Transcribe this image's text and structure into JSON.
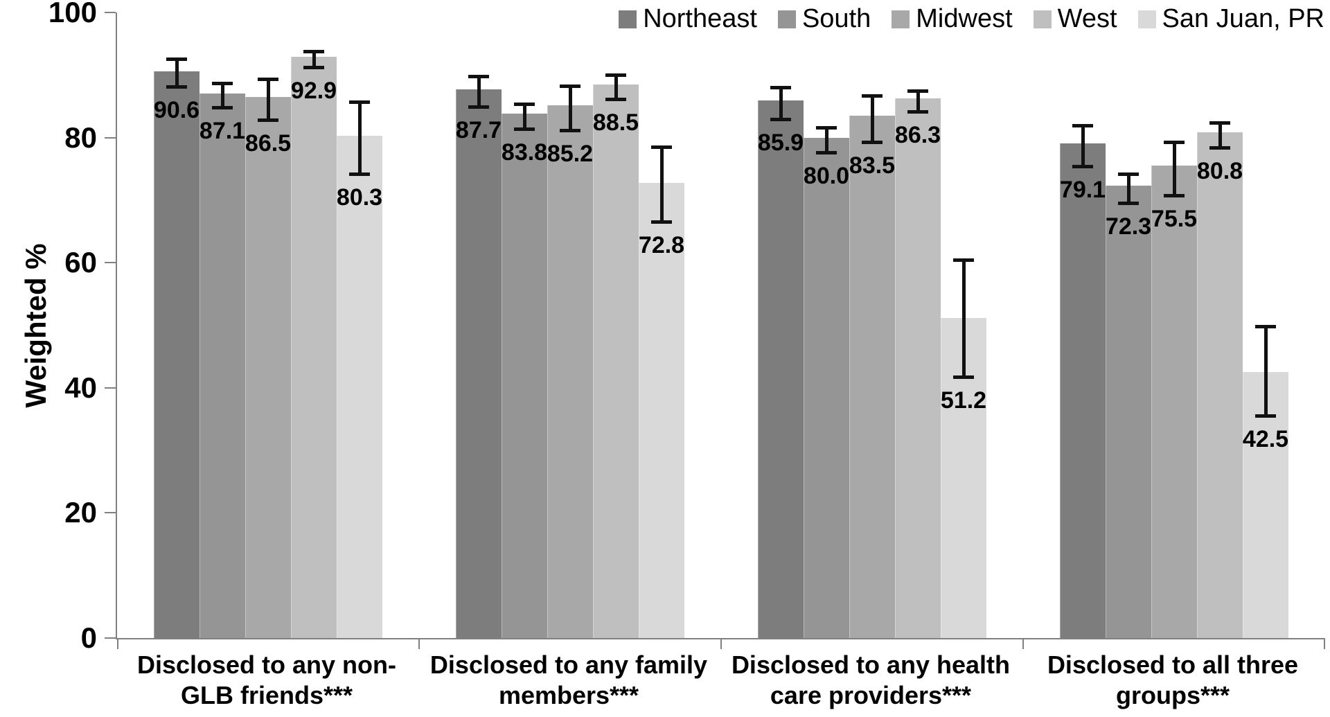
{
  "chart_data": {
    "type": "bar",
    "title": "",
    "ylabel": "Weighted %",
    "ylim": [
      0,
      100
    ],
    "yticks": [
      0,
      20,
      40,
      60,
      80,
      100
    ],
    "grid": false,
    "legend_position": "top-right",
    "error_bars": true,
    "significance_note": "*** shown on each category label",
    "categories": [
      {
        "label": "Disclosed to any non-GLB friends***",
        "lines": "Disclosed to any non-\nGLB friends***"
      },
      {
        "label": "Disclosed to any family members***",
        "lines": "Disclosed to any family\nmembers***"
      },
      {
        "label": "Disclosed to any health care providers***",
        "lines": "Disclosed to any health\ncare providers***"
      },
      {
        "label": "Disclosed to all three groups***",
        "lines": "Disclosed to all three\ngroups***"
      }
    ],
    "series": [
      {
        "name": "Northeast",
        "color": "#7d7d7d",
        "values": [
          90.6,
          87.7,
          85.9,
          79.1
        ],
        "error_low": [
          88.0,
          84.8,
          82.8,
          75.3
        ],
        "error_high": [
          92.6,
          89.8,
          88.0,
          82.0
        ]
      },
      {
        "name": "South",
        "color": "#959595",
        "values": [
          87.1,
          83.8,
          80.0,
          72.3
        ],
        "error_low": [
          84.7,
          81.3,
          77.5,
          69.4
        ],
        "error_high": [
          88.7,
          85.4,
          81.6,
          74.2
        ]
      },
      {
        "name": "Midwest",
        "color": "#a8a8a8",
        "values": [
          86.5,
          85.2,
          83.5,
          75.5
        ],
        "error_low": [
          82.7,
          81.1,
          79.2,
          70.7
        ],
        "error_high": [
          89.4,
          88.3,
          86.7,
          79.3
        ]
      },
      {
        "name": "West",
        "color": "#bfbfbf",
        "values": [
          92.9,
          88.5,
          86.3,
          80.8
        ],
        "error_low": [
          91.1,
          86.0,
          84.1,
          78.3
        ],
        "error_high": [
          93.8,
          90.0,
          87.5,
          82.4
        ]
      },
      {
        "name": "San Juan, PR",
        "color": "#d9d9d9",
        "values": [
          80.3,
          72.8,
          51.2,
          42.5
        ],
        "error_low": [
          74.1,
          66.4,
          41.6,
          35.4
        ],
        "error_high": [
          85.7,
          78.5,
          60.5,
          49.8
        ]
      }
    ],
    "axis_color": "#808080",
    "error_bar_color": "#111111",
    "value_label_format": "one_decimal"
  }
}
